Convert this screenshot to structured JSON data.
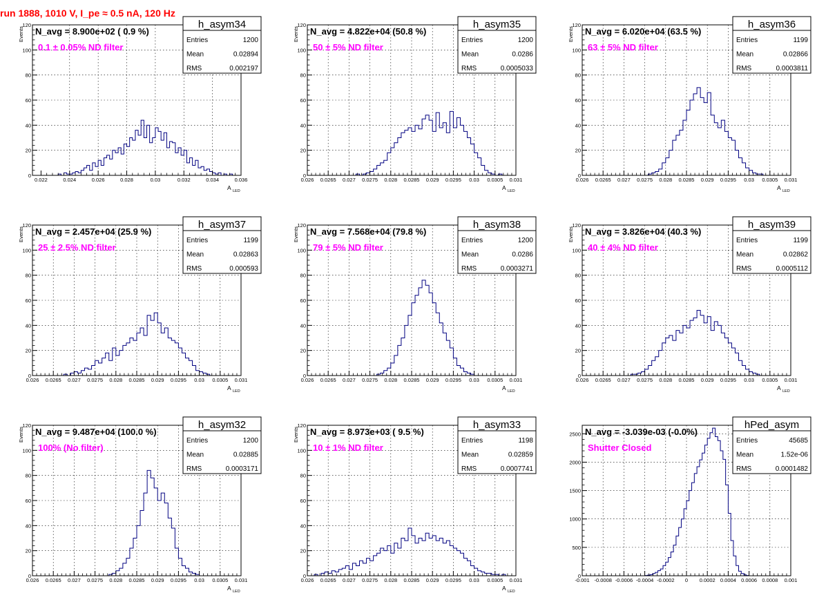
{
  "page_title": "run 1888,  1010 V, I_pe ≈ 0.5 nA, 120 Hz",
  "colors": {
    "histogram_line": "#000080",
    "annotation": "#ff00ff",
    "title_red": "#ff0000",
    "grid": "#000000"
  },
  "chart_data": [
    {
      "type": "histogram",
      "name": "h_asym34",
      "stats": [
        [
          "Entries",
          "1200"
        ],
        [
          "Mean",
          "0.02894"
        ],
        [
          "RMS",
          "0.002197"
        ]
      ],
      "navg": "N_avg = 8.900e+02 ( 0.9 %)",
      "note": "0.1 ± 0.05% ND filter",
      "ylabel": "Events",
      "xlabel": "A",
      "xlabel_sub": "LED",
      "xlim": [
        0.0214,
        0.036
      ],
      "ylim": [
        0,
        120
      ],
      "xticks": [
        0.022,
        0.024,
        0.026,
        0.028,
        0.03,
        0.032,
        0.034,
        0.036
      ],
      "xticklabels": [
        "0.022",
        "0.024",
        "0.026",
        "0.028",
        "0.03",
        "0.032",
        "0.034",
        "0.036"
      ],
      "yticks": [
        0,
        20,
        40,
        60,
        80,
        100,
        120
      ],
      "yticklabels": [
        "0",
        "20",
        "40",
        "60",
        "80",
        "100",
        "120"
      ],
      "bins": {
        "lo": 0.0214,
        "hi": 0.036,
        "counts": [
          0,
          0,
          0,
          0,
          0,
          0,
          0,
          0,
          0,
          1,
          0,
          2,
          1,
          1,
          2,
          3,
          2,
          4,
          6,
          8,
          4,
          10,
          7,
          12,
          8,
          14,
          16,
          13,
          20,
          18,
          22,
          17,
          25,
          23,
          30,
          28,
          36,
          32,
          44,
          30,
          40,
          26,
          30,
          38,
          35,
          28,
          34,
          22,
          27,
          26,
          18,
          22,
          16,
          20,
          10,
          14,
          8,
          12,
          6,
          7,
          4,
          5,
          3,
          2,
          1,
          2,
          0,
          1,
          0,
          1,
          0,
          0,
          0
        ]
      }
    },
    {
      "type": "histogram",
      "name": "h_asym35",
      "stats": [
        [
          "Entries",
          "1200"
        ],
        [
          "Mean",
          "0.0286"
        ],
        [
          "RMS",
          "0.0005033"
        ]
      ],
      "navg": "N_avg = 4.822e+04 (50.8 %)",
      "note": "50 ± 5% ND filter",
      "ylabel": "Events",
      "xlabel": "A",
      "xlabel_sub": "LED",
      "xlim": [
        0.026,
        0.031
      ],
      "ylim": [
        0,
        120
      ],
      "xticks": [
        0.026,
        0.0265,
        0.027,
        0.0275,
        0.028,
        0.0285,
        0.029,
        0.0295,
        0.03,
        0.0305,
        0.031
      ],
      "xticklabels": [
        "0.026",
        "0.0265",
        "0.027",
        "0.0275",
        "0.028",
        "0.0285",
        "0.029",
        "0.0295",
        "0.03",
        "0.0305",
        "0.031"
      ],
      "yticks": [
        0,
        20,
        40,
        60,
        80,
        100,
        120
      ],
      "yticklabels": [
        "0",
        "20",
        "40",
        "60",
        "80",
        "100",
        "120"
      ],
      "bins": {
        "lo": 0.026,
        "hi": 0.031,
        "counts": [
          0,
          0,
          0,
          0,
          0,
          0,
          0,
          0,
          0,
          0,
          0,
          0,
          0,
          0,
          1,
          0,
          1,
          2,
          3,
          5,
          8,
          10,
          12,
          18,
          22,
          26,
          30,
          34,
          36,
          38,
          35,
          40,
          37,
          45,
          48,
          44,
          35,
          50,
          38,
          42,
          34,
          51,
          38,
          46,
          40,
          35,
          30,
          25,
          18,
          14,
          8,
          4,
          2,
          1,
          0,
          1,
          0,
          0,
          0,
          0
        ]
      }
    },
    {
      "type": "histogram",
      "name": "h_asym36",
      "stats": [
        [
          "Entries",
          "1199"
        ],
        [
          "Mean",
          "0.02866"
        ],
        [
          "RMS",
          "0.0003811"
        ]
      ],
      "navg": "N_avg = 6.020e+04 (63.5 %)",
      "note": "63 ± 5% ND filter",
      "ylabel": "Events",
      "xlabel": "A",
      "xlabel_sub": "LED",
      "xlim": [
        0.026,
        0.031
      ],
      "ylim": [
        0,
        120
      ],
      "xticks": [
        0.026,
        0.0265,
        0.027,
        0.0275,
        0.028,
        0.0285,
        0.029,
        0.0295,
        0.03,
        0.0305,
        0.031
      ],
      "xticklabels": [
        "0.026",
        "0.0265",
        "0.027",
        "0.0275",
        "0.028",
        "0.0285",
        "0.029",
        "0.0295",
        "0.03",
        "0.0305",
        "0.031"
      ],
      "yticks": [
        0,
        20,
        40,
        60,
        80,
        100,
        120
      ],
      "yticklabels": [
        "0",
        "20",
        "40",
        "60",
        "80",
        "100",
        "120"
      ],
      "bins": {
        "lo": 0.026,
        "hi": 0.031,
        "counts": [
          0,
          0,
          0,
          0,
          0,
          0,
          0,
          0,
          0,
          0,
          0,
          0,
          0,
          0,
          0,
          0,
          0,
          0,
          0,
          1,
          2,
          3,
          5,
          10,
          14,
          20,
          28,
          32,
          36,
          44,
          52,
          60,
          65,
          70,
          62,
          58,
          66,
          48,
          42,
          38,
          44,
          35,
          30,
          28,
          20,
          14,
          10,
          6,
          4,
          2,
          1,
          1,
          0,
          0,
          0,
          0,
          0,
          0,
          0,
          0
        ]
      }
    },
    {
      "type": "histogram",
      "name": "h_asym37",
      "stats": [
        [
          "Entries",
          "1199"
        ],
        [
          "Mean",
          "0.02863"
        ],
        [
          "RMS",
          "0.000593"
        ]
      ],
      "navg": "N_avg = 2.457e+04 (25.9 %)",
      "note": "25 ± 2.5% ND filter",
      "ylabel": "Events",
      "xlabel": "A",
      "xlabel_sub": "LED",
      "xlim": [
        0.026,
        0.031
      ],
      "ylim": [
        0,
        120
      ],
      "xticks": [
        0.026,
        0.0265,
        0.027,
        0.0275,
        0.028,
        0.0285,
        0.029,
        0.0295,
        0.03,
        0.0305,
        0.031
      ],
      "xticklabels": [
        "0.026",
        "0.0265",
        "0.027",
        "0.0275",
        "0.028",
        "0.0285",
        "0.029",
        "0.0295",
        "0.03",
        "0.0305",
        "0.031"
      ],
      "yticks": [
        0,
        20,
        40,
        60,
        80,
        100,
        120
      ],
      "yticklabels": [
        "0",
        "20",
        "40",
        "60",
        "80",
        "100",
        "120"
      ],
      "bins": {
        "lo": 0.026,
        "hi": 0.031,
        "counts": [
          0,
          0,
          0,
          0,
          0,
          0,
          0,
          0,
          0,
          1,
          0,
          2,
          3,
          2,
          4,
          6,
          5,
          8,
          12,
          10,
          14,
          18,
          12,
          22,
          16,
          20,
          24,
          26,
          30,
          28,
          34,
          38,
          32,
          48,
          44,
          50,
          42,
          34,
          38,
          30,
          28,
          26,
          22,
          18,
          14,
          12,
          8,
          4,
          3,
          2,
          1,
          0,
          0,
          0,
          0,
          0,
          0,
          0,
          0,
          0
        ]
      }
    },
    {
      "type": "histogram",
      "name": "h_asym38",
      "stats": [
        [
          "Entries",
          "1200"
        ],
        [
          "Mean",
          "0.0286"
        ],
        [
          "RMS",
          "0.0003271"
        ]
      ],
      "navg": "N_avg = 7.568e+04 (79.8 %)",
      "note": "79 ± 5% ND filter",
      "ylabel": "Events",
      "xlabel": "A",
      "xlabel_sub": "LED",
      "xlim": [
        0.026,
        0.031
      ],
      "ylim": [
        0,
        120
      ],
      "xticks": [
        0.026,
        0.0265,
        0.027,
        0.0275,
        0.028,
        0.0285,
        0.029,
        0.0295,
        0.03,
        0.0305,
        0.031
      ],
      "xticklabels": [
        "0.026",
        "0.0265",
        "0.027",
        "0.0275",
        "0.028",
        "0.0285",
        "0.029",
        "0.0295",
        "0.03",
        "0.0305",
        "0.031"
      ],
      "yticks": [
        0,
        20,
        40,
        60,
        80,
        100,
        120
      ],
      "yticklabels": [
        "0",
        "20",
        "40",
        "60",
        "80",
        "100",
        "120"
      ],
      "bins": {
        "lo": 0.026,
        "hi": 0.031,
        "counts": [
          0,
          0,
          0,
          0,
          0,
          0,
          0,
          0,
          0,
          0,
          0,
          0,
          0,
          0,
          0,
          0,
          0,
          0,
          0,
          0,
          1,
          2,
          4,
          6,
          10,
          16,
          24,
          30,
          40,
          48,
          58,
          64,
          70,
          76,
          72,
          66,
          58,
          50,
          42,
          34,
          28,
          22,
          14,
          8,
          6,
          3,
          2,
          1,
          0,
          0,
          0,
          0,
          0,
          0,
          0,
          0,
          0,
          0,
          0,
          0
        ]
      }
    },
    {
      "type": "histogram",
      "name": "h_asym39",
      "stats": [
        [
          "Entries",
          "1199"
        ],
        [
          "Mean",
          "0.02862"
        ],
        [
          "RMS",
          "0.0005112"
        ]
      ],
      "navg": "N_avg = 3.826e+04 (40.3 %)",
      "note": "40 ± 4% ND filter",
      "ylabel": "Events",
      "xlabel": "A",
      "xlabel_sub": "LED",
      "xlim": [
        0.026,
        0.031
      ],
      "ylim": [
        0,
        120
      ],
      "xticks": [
        0.026,
        0.0265,
        0.027,
        0.0275,
        0.028,
        0.0285,
        0.029,
        0.0295,
        0.03,
        0.0305,
        0.031
      ],
      "xticklabels": [
        "0.026",
        "0.0265",
        "0.027",
        "0.0275",
        "0.028",
        "0.0285",
        "0.029",
        "0.0295",
        "0.03",
        "0.0305",
        "0.031"
      ],
      "yticks": [
        0,
        20,
        40,
        60,
        80,
        100,
        120
      ],
      "yticklabels": [
        "0",
        "20",
        "40",
        "60",
        "80",
        "100",
        "120"
      ],
      "bins": {
        "lo": 0.026,
        "hi": 0.031,
        "counts": [
          0,
          0,
          0,
          0,
          0,
          0,
          0,
          0,
          0,
          0,
          0,
          0,
          0,
          0,
          1,
          1,
          2,
          3,
          5,
          8,
          12,
          15,
          20,
          26,
          30,
          32,
          28,
          36,
          34,
          40,
          38,
          44,
          46,
          52,
          48,
          42,
          47,
          36,
          43,
          40,
          34,
          30,
          26,
          22,
          18,
          12,
          8,
          5,
          3,
          2,
          1,
          0,
          0,
          0,
          0,
          0,
          0,
          0,
          0,
          0
        ]
      }
    },
    {
      "type": "histogram",
      "name": "h_asym32",
      "stats": [
        [
          "Entries",
          "1200"
        ],
        [
          "Mean",
          "0.02885"
        ],
        [
          "RMS",
          "0.0003171"
        ]
      ],
      "navg": "N_avg = 9.487e+04 (100.0 %)",
      "note": "100% (No filter)",
      "ylabel": "Events",
      "xlabel": "A",
      "xlabel_sub": "LED",
      "xlim": [
        0.026,
        0.031
      ],
      "ylim": [
        0,
        120
      ],
      "xticks": [
        0.026,
        0.0265,
        0.027,
        0.0275,
        0.028,
        0.0285,
        0.029,
        0.0295,
        0.03,
        0.0305,
        0.031
      ],
      "xticklabels": [
        "0.026",
        "0.0265",
        "0.027",
        "0.0275",
        "0.028",
        "0.0285",
        "0.029",
        "0.0295",
        "0.03",
        "0.0305",
        "0.031"
      ],
      "yticks": [
        0,
        20,
        40,
        60,
        80,
        100,
        120
      ],
      "yticklabels": [
        "0",
        "20",
        "40",
        "60",
        "80",
        "100",
        "120"
      ],
      "bins": {
        "lo": 0.026,
        "hi": 0.031,
        "counts": [
          0,
          0,
          0,
          0,
          0,
          0,
          0,
          0,
          0,
          0,
          0,
          0,
          0,
          0,
          0,
          0,
          0,
          0,
          0,
          0,
          0,
          0,
          1,
          2,
          4,
          6,
          10,
          14,
          22,
          30,
          40,
          52,
          66,
          84,
          78,
          70,
          60,
          66,
          58,
          46,
          38,
          22,
          14,
          8,
          6,
          3,
          2,
          1,
          0,
          0,
          0,
          0,
          0,
          0,
          0,
          0,
          0,
          0,
          0,
          0
        ]
      }
    },
    {
      "type": "histogram",
      "name": "h_asym33",
      "stats": [
        [
          "Entries",
          "1198"
        ],
        [
          "Mean",
          "0.02859"
        ],
        [
          "RMS",
          "0.0007741"
        ]
      ],
      "navg": "N_avg = 8.973e+03 ( 9.5 %)",
      "note": "10 ± 1% ND filter",
      "ylabel": "Events",
      "xlabel": "A",
      "xlabel_sub": "LED",
      "xlim": [
        0.026,
        0.031
      ],
      "ylim": [
        0,
        120
      ],
      "xticks": [
        0.026,
        0.0265,
        0.027,
        0.0275,
        0.028,
        0.0285,
        0.029,
        0.0295,
        0.03,
        0.0305,
        0.031
      ],
      "xticklabels": [
        "0.026",
        "0.0265",
        "0.027",
        "0.0275",
        "0.028",
        "0.0285",
        "0.029",
        "0.0295",
        "0.03",
        "0.0305",
        "0.031"
      ],
      "yticks": [
        0,
        20,
        40,
        60,
        80,
        100,
        120
      ],
      "yticklabels": [
        "0",
        "20",
        "40",
        "60",
        "80",
        "100",
        "120"
      ],
      "bins": {
        "lo": 0.026,
        "hi": 0.031,
        "counts": [
          0,
          0,
          1,
          0,
          2,
          3,
          2,
          4,
          3,
          5,
          6,
          8,
          5,
          10,
          8,
          12,
          10,
          14,
          12,
          16,
          18,
          22,
          20,
          24,
          18,
          26,
          22,
          30,
          28,
          38,
          32,
          26,
          30,
          28,
          34,
          30,
          32,
          28,
          30,
          26,
          28,
          24,
          22,
          20,
          18,
          14,
          12,
          8,
          6,
          4,
          3,
          2,
          2,
          1,
          1,
          0,
          1,
          0,
          0,
          0
        ]
      }
    },
    {
      "type": "histogram",
      "name": "hPed_asym",
      "stats": [
        [
          "Entries",
          "45685"
        ],
        [
          "Mean",
          "1.52e-06"
        ],
        [
          "RMS",
          "0.0001482"
        ]
      ],
      "navg": "N_avg = -3.039e-03 (-0.0%)",
      "note": "Shutter Closed",
      "ylabel": "",
      "xlabel": "",
      "xlabel_sub": "",
      "xlim": [
        -0.001,
        0.001
      ],
      "ylim": [
        0,
        2650
      ],
      "xticks": [
        -0.001,
        -0.0008,
        -0.0006,
        -0.0004,
        -0.0002,
        0,
        0.0002,
        0.0004,
        0.0006,
        0.0008,
        0.001
      ],
      "xticklabels": [
        "-0.001",
        "-0.0008",
        "-0.0006",
        "-0.0004",
        "-0.0002",
        "0",
        "0.0002",
        "0.0004",
        "0.0006",
        "0.0008",
        "0.001"
      ],
      "yticks": [
        0,
        500,
        1000,
        1500,
        2000,
        2500
      ],
      "yticklabels": [
        "0",
        "500",
        "1000",
        "1500",
        "2000",
        "2500"
      ],
      "bins": {
        "lo": -0.001,
        "hi": 0.001,
        "counts": [
          0,
          0,
          0,
          0,
          0,
          0,
          0,
          0,
          0,
          0,
          0,
          0,
          0,
          0,
          0,
          0,
          0,
          0,
          0,
          0,
          0,
          0,
          0,
          0,
          5,
          10,
          20,
          40,
          60,
          90,
          120,
          180,
          240,
          320,
          420,
          540,
          700,
          850,
          1000,
          1180,
          1320,
          1500,
          1640,
          1800,
          1920,
          2040,
          2160,
          2300,
          2420,
          2520,
          2600,
          2450,
          2380,
          2200,
          2050,
          1600,
          1100,
          620,
          350,
          180,
          80,
          40,
          15,
          5,
          0,
          0,
          0,
          0,
          0,
          0,
          0,
          0,
          0,
          0,
          0,
          0,
          0,
          0,
          0,
          0
        ]
      }
    }
  ]
}
